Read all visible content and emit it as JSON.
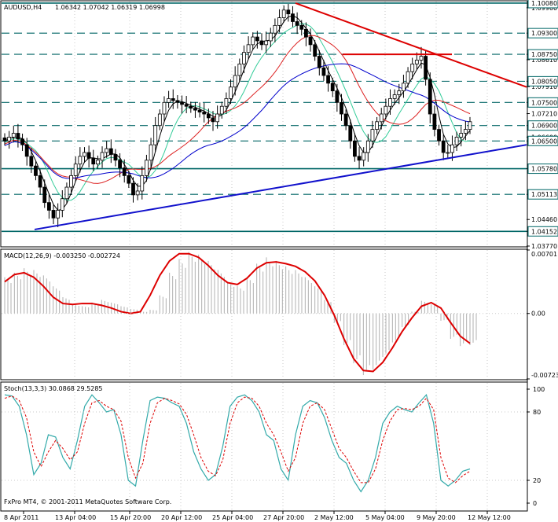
{
  "chart_data": [
    {
      "type": "candlestick",
      "symbol_header": "AUDUSD,H4",
      "ohlc_header": "1.06342 1.07042 1.06319 1.06998",
      "y_ticks": [
        "1.10080",
        "1.09960",
        "1.09300",
        "1.08750",
        "1.08610",
        "1.08050",
        "1.07910",
        "1.07500",
        "1.07210",
        "1.06900",
        "1.06600",
        "1.06500",
        "1.05780",
        "1.05113",
        "1.04460",
        "1.04152",
        "1.03770"
      ],
      "price_labels": [
        "1.10080",
        "1.09300",
        "1.08750",
        "1.08050",
        "1.07500",
        "1.06900",
        "1.06500",
        "1.05780",
        "1.05113",
        "1.04152"
      ],
      "ylim": [
        1.0377,
        1.1012
      ],
      "x_ticks": [
        "8 Apr 2011",
        "13 Apr 04:00",
        "15 Apr 20:00",
        "20 Apr 12:00",
        "25 Apr 04:00",
        "27 Apr 20:00",
        "2 May 12:00",
        "5 May 04:00",
        "9 May 20:00",
        "12 May 12:00"
      ],
      "closes": [
        1.065,
        1.066,
        1.067,
        1.0655,
        1.064,
        1.061,
        1.0585,
        1.056,
        1.053,
        1.049,
        1.047,
        1.045,
        1.047,
        1.05,
        1.053,
        1.056,
        1.059,
        1.061,
        1.062,
        1.0605,
        1.059,
        1.06,
        1.062,
        1.063,
        1.0615,
        1.06,
        1.058,
        1.056,
        1.054,
        1.051,
        1.052,
        1.056,
        1.06,
        1.064,
        1.069,
        1.072,
        1.075,
        1.076,
        1.0755,
        1.075,
        1.0745,
        1.074,
        1.0735,
        1.073,
        1.0725,
        1.072,
        1.071,
        1.07,
        1.072,
        1.074,
        1.076,
        1.079,
        1.082,
        1.085,
        1.088,
        1.09,
        1.092,
        1.091,
        1.09,
        1.091,
        1.093,
        1.095,
        1.097,
        1.099,
        1.098,
        1.096,
        1.095,
        1.094,
        1.092,
        1.09,
        1.087,
        1.084,
        1.082,
        1.08,
        1.078,
        1.075,
        1.072,
        1.069,
        1.065,
        1.061,
        1.06,
        1.062,
        1.065,
        1.068,
        1.07,
        1.072,
        1.074,
        1.076,
        1.077,
        1.078,
        1.08,
        1.083,
        1.085,
        1.086,
        1.087,
        1.081,
        1.072,
        1.068,
        1.065,
        1.062,
        1.062,
        1.064,
        1.066,
        1.067,
        1.068,
        1.07
      ],
      "horizontal_levels": [
        1.1008,
        1.093,
        1.0875,
        1.0805,
        1.075,
        1.069,
        1.065,
        1.0578,
        1.05113,
        1.04152
      ],
      "solid_levels": [
        1.1008,
        1.0578,
        1.04152
      ],
      "red_resistance_line": [
        [
          1.1008,
          1.079
        ]
      ],
      "red_horizontal_segment": 1.0875,
      "blue_support_line": [
        [
          1.042,
          1.064
        ]
      ],
      "moving_averages": [
        "black",
        "aqua",
        "red",
        "blue"
      ]
    },
    {
      "type": "bar",
      "name": "MACD(12,26,9) -0.003250 -0.002724",
      "y_ticks": [
        "0.00701",
        "0.00",
        "-0.00723"
      ],
      "ylim": [
        -0.00723,
        0.00701
      ],
      "histogram": [
        0.004,
        0.0045,
        0.005,
        0.0048,
        0.0042,
        0.003,
        0.0018,
        0.001,
        0.0008,
        0.0012,
        0.0015,
        0.0012,
        0.0008,
        0.0005,
        0.0002,
        0.0004,
        0.002,
        0.0045,
        0.006,
        0.0068,
        0.0065,
        0.0058,
        0.0048,
        0.0035,
        0.003,
        0.004,
        0.0055,
        0.0062,
        0.0058,
        0.0052,
        0.0048,
        0.004,
        0.003,
        0.0015,
        -0.001,
        -0.0035,
        -0.0055,
        -0.0068,
        -0.0062,
        -0.0048,
        -0.0032,
        -0.0015,
        0.0002,
        0.0014,
        0.001,
        -0.0008,
        -0.0028,
        -0.0036,
        -0.0035
      ],
      "signal": [
        0.0035,
        0.0043,
        0.0045,
        0.004,
        0.003,
        0.0018,
        0.0011,
        0.001,
        0.0011,
        0.0011,
        0.0009,
        0.0006,
        0.0002,
        0.0,
        0.0002,
        0.002,
        0.0042,
        0.0058,
        0.0066,
        0.0066,
        0.0062,
        0.0053,
        0.0042,
        0.0034,
        0.0032,
        0.0039,
        0.005,
        0.0056,
        0.0057,
        0.0055,
        0.0052,
        0.0046,
        0.0036,
        0.002,
        -0.0002,
        -0.0028,
        -0.005,
        -0.0063,
        -0.0064,
        -0.0054,
        -0.0038,
        -0.002,
        -0.0005,
        0.0008,
        0.0012,
        0.0006,
        -0.001,
        -0.0025,
        -0.0033
      ]
    },
    {
      "type": "line",
      "name": "Stoch(13,3,3) 30.0868 29.5285",
      "y_ticks": [
        "100",
        "80",
        "20",
        "0"
      ],
      "ylim": [
        0,
        100
      ],
      "k": [
        95,
        94,
        85,
        60,
        25,
        35,
        60,
        58,
        40,
        30,
        55,
        85,
        95,
        88,
        80,
        82,
        60,
        20,
        15,
        55,
        90,
        93,
        92,
        88,
        85,
        70,
        45,
        30,
        20,
        25,
        50,
        85,
        93,
        95,
        90,
        80,
        60,
        55,
        30,
        20,
        60,
        85,
        90,
        88,
        75,
        55,
        40,
        35,
        20,
        10,
        20,
        40,
        70,
        80,
        85,
        82,
        80,
        88,
        95,
        70,
        20,
        15,
        20,
        28,
        30
      ],
      "d": [
        92,
        94,
        90,
        75,
        45,
        32,
        45,
        55,
        48,
        38,
        45,
        70,
        88,
        90,
        85,
        82,
        72,
        40,
        22,
        35,
        70,
        88,
        92,
        90,
        87,
        78,
        60,
        40,
        28,
        24,
        38,
        70,
        88,
        93,
        92,
        85,
        70,
        60,
        45,
        28,
        40,
        70,
        85,
        88,
        82,
        65,
        48,
        40,
        28,
        18,
        18,
        30,
        55,
        72,
        82,
        83,
        82,
        85,
        92,
        82,
        40,
        22,
        18,
        24,
        28
      ]
    }
  ],
  "footer": "FxPro MT4, © 2001-2011 MetaQuotes Software Corp."
}
